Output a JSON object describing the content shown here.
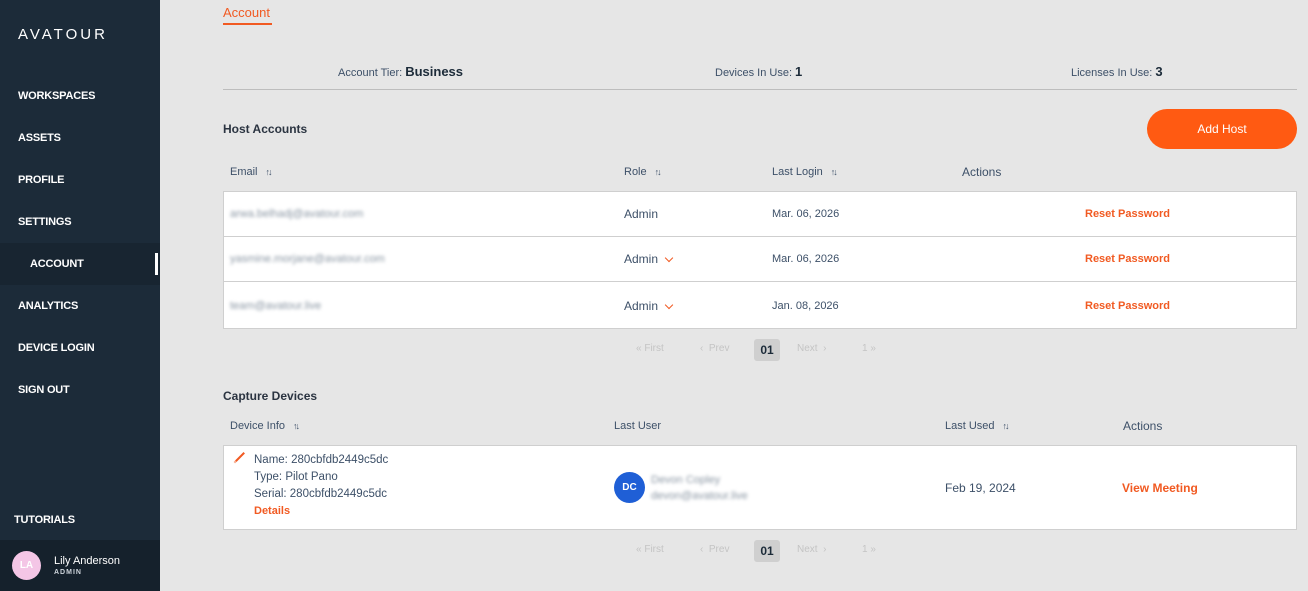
{
  "sidebar": {
    "logo": "AVATOUR",
    "nav": [
      "WORKSPACES",
      "ASSETS",
      "PROFILE",
      "SETTINGS",
      "ACCOUNT",
      "ANALYTICS",
      "DEVICE LOGIN",
      "SIGN OUT"
    ],
    "tutorials": "TUTORIALS",
    "user": {
      "initials": "LA",
      "name": "Lily Anderson",
      "role": "ADMIN"
    }
  },
  "tab": "Account",
  "stats": {
    "tier_label": "Account Tier:",
    "tier_value": "Business",
    "devices_label": "Devices In Use:",
    "devices_value": "1",
    "licenses_label": "Licenses In Use:",
    "licenses_value": "3"
  },
  "hosts": {
    "title": "Host Accounts",
    "add_label": "Add Host",
    "columns": {
      "email": "Email",
      "role": "Role",
      "last_login": "Last Login",
      "actions": "Actions"
    },
    "rows": [
      {
        "email": "arwa.belhadj@avatour.com",
        "role": "Admin",
        "last_login": "Mar. 06, 2026",
        "action": "Reset Password"
      },
      {
        "email": "yasmine.morjane@avatour.com",
        "role": "Admin",
        "last_login": "Mar. 06, 2026",
        "action": "Reset Password"
      },
      {
        "email": "team@avatour.live",
        "role": "Admin",
        "last_login": "Jan. 08, 2026",
        "action": "Reset Password"
      }
    ],
    "pager": {
      "first": "First",
      "prev": "Prev",
      "page": "01",
      "next": "Next",
      "last": "1"
    }
  },
  "devices": {
    "title": "Capture Devices",
    "columns": {
      "device_info": "Device Info",
      "last_user": "Last User",
      "last_used": "Last Used",
      "actions": "Actions"
    },
    "row": {
      "name": "Name: 280cbfdb2449c5dc",
      "type": "Type: Pilot Pano",
      "serial": "Serial: 280cbfdb2449c5dc",
      "details": "Details",
      "user_initials": "DC",
      "user_name": "Devon Copley",
      "user_email": "devon@avatour.live",
      "last_used": "Feb 19, 2024",
      "action": "View Meeting"
    },
    "pager": {
      "first": "First",
      "prev": "Prev",
      "page": "01",
      "next": "Next",
      "last": "1"
    }
  }
}
